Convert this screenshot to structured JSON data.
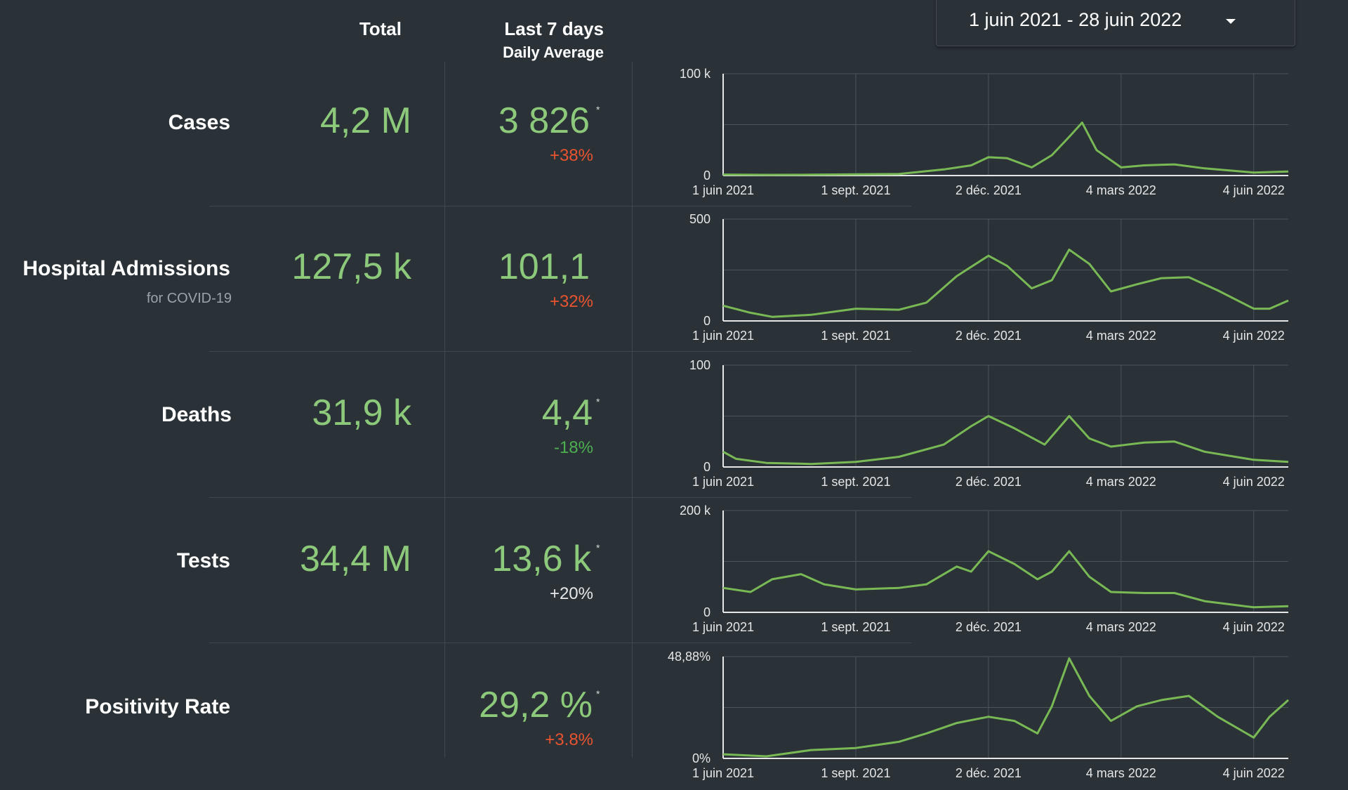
{
  "date_range": "1 juin 2021 - 28 juin 2022",
  "headers": {
    "total": "Total",
    "last7": "Last 7 days",
    "last7_sub": "Daily Average"
  },
  "rows": [
    {
      "label": "Cases",
      "total": "4,2 M",
      "avg": "3 826",
      "asterisk": "*",
      "change": "+38%",
      "change_color": "#e8532f"
    },
    {
      "label": "Hospital Admissions",
      "sublabel": "for COVID-19",
      "total": "127,5 k",
      "avg": "101,1",
      "change": "+32%",
      "change_color": "#e8532f"
    },
    {
      "label": "Deaths",
      "total": "31,9 k",
      "avg": "4,4",
      "asterisk": "*",
      "change": "-18%",
      "change_color": "#4caf50"
    },
    {
      "label": "Tests",
      "total": "34,4 M",
      "avg": "13,6 k",
      "asterisk": "*",
      "change": "+20%",
      "change_color": "#e6e6e6"
    },
    {
      "label": "Positivity Rate",
      "avg": "29,2 %",
      "asterisk": "*",
      "change": "+3.8%",
      "change_color": "#e8532f"
    }
  ],
  "colors": {
    "line": "#79b955",
    "grid": "#4a5459",
    "axis": "#e6e6e6",
    "background": "#2a3238"
  },
  "chart_data": [
    {
      "type": "line",
      "name": "Cases",
      "x_ticks": [
        "1 juin 2021",
        "1 sept. 2021",
        "2 déc. 2021",
        "4 mars 2022",
        "4 juin 2022"
      ],
      "y_ticks": [
        "0",
        "100 k"
      ],
      "ylim": [
        0,
        100000
      ],
      "x": [
        "2021-06-01",
        "2021-07-01",
        "2021-08-01",
        "2021-09-01",
        "2021-10-01",
        "2021-11-01",
        "2021-11-20",
        "2021-12-02",
        "2021-12-15",
        "2022-01-01",
        "2022-01-15",
        "2022-01-27",
        "2022-02-05",
        "2022-02-15",
        "2022-03-04",
        "2022-03-20",
        "2022-04-10",
        "2022-05-01",
        "2022-06-04",
        "2022-06-28"
      ],
      "y": [
        1000,
        700,
        800,
        1200,
        1500,
        6000,
        10000,
        18000,
        17000,
        8000,
        20000,
        38000,
        52000,
        25000,
        8000,
        10000,
        11000,
        7000,
        3000,
        4000
      ]
    },
    {
      "type": "line",
      "name": "Hospital Admissions",
      "x_ticks": [
        "1 juin 2021",
        "1 sept. 2021",
        "2 déc. 2021",
        "4 mars 2022",
        "4 juin 2022"
      ],
      "y_ticks": [
        "0",
        "500"
      ],
      "ylim": [
        0,
        500
      ],
      "x": [
        "2021-06-01",
        "2021-06-20",
        "2021-07-05",
        "2021-08-01",
        "2021-09-01",
        "2021-10-01",
        "2021-10-20",
        "2021-11-10",
        "2021-12-02",
        "2021-12-15",
        "2022-01-01",
        "2022-01-15",
        "2022-01-27",
        "2022-02-10",
        "2022-02-25",
        "2022-03-15",
        "2022-04-01",
        "2022-04-20",
        "2022-05-10",
        "2022-06-04",
        "2022-06-15",
        "2022-06-28"
      ],
      "y": [
        75,
        40,
        20,
        30,
        60,
        55,
        90,
        220,
        320,
        270,
        160,
        200,
        350,
        280,
        145,
        180,
        210,
        215,
        150,
        60,
        60,
        100
      ]
    },
    {
      "type": "line",
      "name": "Deaths",
      "x_ticks": [
        "1 juin 2021",
        "1 sept. 2021",
        "2 déc. 2021",
        "4 mars 2022",
        "4 juin 2022"
      ],
      "y_ticks": [
        "0",
        "100"
      ],
      "ylim": [
        0,
        100
      ],
      "x": [
        "2021-06-01",
        "2021-06-10",
        "2021-07-01",
        "2021-08-01",
        "2021-09-01",
        "2021-10-01",
        "2021-11-01",
        "2021-11-20",
        "2021-12-02",
        "2021-12-20",
        "2022-01-10",
        "2022-01-27",
        "2022-02-10",
        "2022-02-25",
        "2022-03-20",
        "2022-04-10",
        "2022-05-01",
        "2022-06-04",
        "2022-06-28"
      ],
      "y": [
        15,
        8,
        4,
        3,
        5,
        10,
        22,
        40,
        50,
        38,
        22,
        50,
        28,
        20,
        24,
        25,
        15,
        7,
        5
      ]
    },
    {
      "type": "line",
      "name": "Tests",
      "x_ticks": [
        "1 juin 2021",
        "1 sept. 2021",
        "2 déc. 2021",
        "4 mars 2022",
        "4 juin 2022"
      ],
      "y_ticks": [
        "0",
        "200 k"
      ],
      "ylim": [
        0,
        200000
      ],
      "x": [
        "2021-06-01",
        "2021-06-20",
        "2021-07-05",
        "2021-07-25",
        "2021-08-10",
        "2021-09-01",
        "2021-10-01",
        "2021-10-20",
        "2021-11-10",
        "2021-11-20",
        "2021-12-02",
        "2021-12-20",
        "2022-01-05",
        "2022-01-15",
        "2022-01-27",
        "2022-02-10",
        "2022-02-25",
        "2022-03-20",
        "2022-04-10",
        "2022-05-01",
        "2022-06-04",
        "2022-06-28"
      ],
      "y": [
        48000,
        40000,
        65000,
        75000,
        55000,
        45000,
        48000,
        55000,
        90000,
        80000,
        120000,
        95000,
        65000,
        80000,
        120000,
        70000,
        40000,
        38000,
        38000,
        22000,
        10000,
        12000
      ]
    },
    {
      "type": "line",
      "name": "Positivity Rate",
      "x_ticks": [
        "1 juin 2021",
        "1 sept. 2021",
        "2 déc. 2021",
        "4 mars 2022",
        "4 juin 2022"
      ],
      "y_ticks": [
        "0%",
        "48,88%"
      ],
      "ylim": [
        0,
        48.88
      ],
      "x": [
        "2021-06-01",
        "2021-07-01",
        "2021-08-01",
        "2021-09-01",
        "2021-10-01",
        "2021-10-20",
        "2021-11-10",
        "2021-12-02",
        "2021-12-20",
        "2022-01-05",
        "2022-01-15",
        "2022-01-27",
        "2022-02-10",
        "2022-02-25",
        "2022-03-15",
        "2022-04-01",
        "2022-04-20",
        "2022-05-10",
        "2022-06-04",
        "2022-06-15",
        "2022-06-28"
      ],
      "y": [
        2,
        1,
        4,
        5,
        8,
        12,
        17,
        20,
        18,
        12,
        25,
        48,
        30,
        18,
        25,
        28,
        30,
        20,
        10,
        20,
        28
      ]
    }
  ]
}
